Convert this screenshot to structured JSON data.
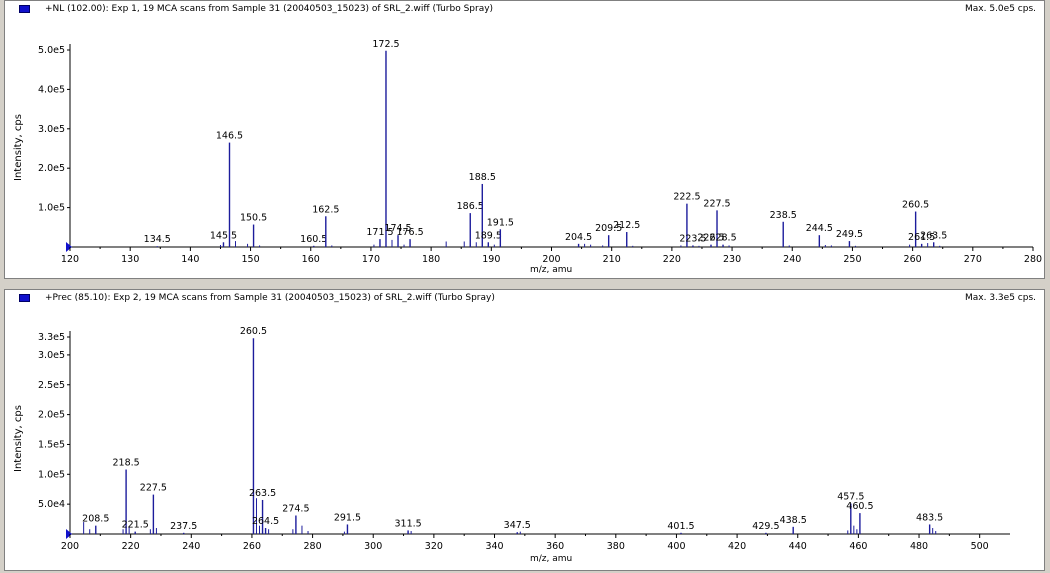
{
  "spectra": [
    {
      "title": "+NL (102.00): Exp 1, 19 MCA scans from Sample 31 (20040503_15023) of SRL_2.wiff (Turbo Spray)",
      "max_label": "Max. 5.0e5 cps.",
      "ylabel": "Intensity, cps",
      "xlabel": "m/z, amu"
    },
    {
      "title": "+Prec (85.10): Exp 2, 19 MCA scans from Sample 31 (20040503_15023) of SRL_2.wiff (Turbo Spray)",
      "max_label": "Max. 3.3e5 cps.",
      "ylabel": "Intensity, cps",
      "xlabel": "m/z, amu"
    }
  ],
  "colors": {
    "peak": "#1c1c9c",
    "axis": "#000000",
    "marker": "#1111cc"
  },
  "chart_data": [
    {
      "type": "bar",
      "title": "+NL (102.00): Exp 1, 19 MCA scans from Sample 31 (20040503_15023) of SRL_2.wiff (Turbo Spray)",
      "xlabel": "m/z, amu",
      "ylabel": "Intensity, cps",
      "xlim": [
        120,
        280
      ],
      "ylim": [
        0,
        500000
      ],
      "xticks": [
        120,
        130,
        140,
        150,
        160,
        170,
        180,
        190,
        200,
        210,
        220,
        230,
        240,
        250,
        260,
        270,
        280
      ],
      "yticks": [
        {
          "v": 100000,
          "label": "1.0e5"
        },
        {
          "v": 200000,
          "label": "2.0e5"
        },
        {
          "v": 300000,
          "label": "3.0e5"
        },
        {
          "v": 400000,
          "label": "4.0e5"
        },
        {
          "v": 500000,
          "label": "5.0e5"
        }
      ],
      "grid": false,
      "peaks": [
        {
          "x": 134.5,
          "y": 2000,
          "label": "134.5"
        },
        {
          "x": 145.5,
          "y": 12000,
          "label": "145.5"
        },
        {
          "x": 146.5,
          "y": 265000,
          "label": "146.5"
        },
        {
          "x": 150.5,
          "y": 57000,
          "label": "150.5"
        },
        {
          "x": 160.5,
          "y": 3000,
          "label": "160.5"
        },
        {
          "x": 162.5,
          "y": 78000,
          "label": "162.5"
        },
        {
          "x": 171.5,
          "y": 20000,
          "label": "171.5"
        },
        {
          "x": 172.5,
          "y": 498000,
          "label": "172.5"
        },
        {
          "x": 174.5,
          "y": 30000,
          "label": "174.5"
        },
        {
          "x": 176.5,
          "y": 20000,
          "label": "176.5"
        },
        {
          "x": 186.5,
          "y": 86000,
          "label": "186.5"
        },
        {
          "x": 188.5,
          "y": 160000,
          "label": "188.5"
        },
        {
          "x": 189.5,
          "y": 12000,
          "label": "189.5"
        },
        {
          "x": 191.5,
          "y": 45000,
          "label": "191.5"
        },
        {
          "x": 204.5,
          "y": 8000,
          "label": "204.5"
        },
        {
          "x": 209.5,
          "y": 30000,
          "label": "209.5"
        },
        {
          "x": 212.5,
          "y": 38000,
          "label": "212.5"
        },
        {
          "x": 222.5,
          "y": 110000,
          "label": "222.5"
        },
        {
          "x": 223.5,
          "y": 4000,
          "label": "223.5"
        },
        {
          "x": 226.5,
          "y": 6000,
          "label": "226.5"
        },
        {
          "x": 227.5,
          "y": 93000,
          "label": "227.5"
        },
        {
          "x": 228.5,
          "y": 6000,
          "label": "228.5"
        },
        {
          "x": 238.5,
          "y": 64000,
          "label": "238.5"
        },
        {
          "x": 244.5,
          "y": 30000,
          "label": "244.5"
        },
        {
          "x": 249.5,
          "y": 15000,
          "label": "249.5"
        },
        {
          "x": 260.5,
          "y": 90000,
          "label": "260.5"
        },
        {
          "x": 261.5,
          "y": 8000,
          "label": "261.5"
        },
        {
          "x": 263.5,
          "y": 12000,
          "label": "263.5"
        }
      ],
      "minor_peaks": [
        {
          "x": 145.0,
          "y": 5000
        },
        {
          "x": 147.5,
          "y": 15000
        },
        {
          "x": 149.5,
          "y": 8000
        },
        {
          "x": 151.5,
          "y": 4000
        },
        {
          "x": 163.5,
          "y": 4000
        },
        {
          "x": 170.5,
          "y": 6000
        },
        {
          "x": 173.5,
          "y": 18000
        },
        {
          "x": 175.5,
          "y": 6000
        },
        {
          "x": 182.5,
          "y": 14000
        },
        {
          "x": 185.5,
          "y": 14000
        },
        {
          "x": 187.5,
          "y": 12000
        },
        {
          "x": 190.5,
          "y": 6000
        },
        {
          "x": 205.5,
          "y": 8000
        },
        {
          "x": 206.5,
          "y": 6000
        },
        {
          "x": 208.5,
          "y": 4000
        },
        {
          "x": 213.5,
          "y": 3000
        },
        {
          "x": 221.5,
          "y": 4000
        },
        {
          "x": 224.5,
          "y": 3000
        },
        {
          "x": 229.5,
          "y": 4000
        },
        {
          "x": 239.5,
          "y": 4000
        },
        {
          "x": 245.5,
          "y": 5000
        },
        {
          "x": 246.5,
          "y": 4000
        },
        {
          "x": 250.5,
          "y": 3000
        },
        {
          "x": 259.5,
          "y": 6000
        },
        {
          "x": 262.5,
          "y": 10000
        },
        {
          "x": 264.5,
          "y": 3000
        }
      ]
    },
    {
      "type": "bar",
      "title": "+Prec (85.10): Exp 2, 19 MCA scans from Sample 31 (20040503_15023) of SRL_2.wiff (Turbo Spray)",
      "xlabel": "m/z, amu",
      "ylabel": "Intensity, cps",
      "xlim": [
        200,
        510
      ],
      "ylim": [
        0,
        330000
      ],
      "xticks": [
        200,
        220,
        240,
        260,
        280,
        300,
        320,
        340,
        360,
        380,
        400,
        420,
        440,
        460,
        480,
        500
      ],
      "yticks": [
        {
          "v": 50000,
          "label": "5.0e4"
        },
        {
          "v": 100000,
          "label": "1.0e5"
        },
        {
          "v": 150000,
          "label": "1.5e5"
        },
        {
          "v": 200000,
          "label": "2.0e5"
        },
        {
          "v": 250000,
          "label": "2.5e5"
        },
        {
          "v": 300000,
          "label": "3.0e5"
        },
        {
          "v": 330000,
          "label": "3.3e5"
        }
      ],
      "grid": false,
      "peaks": [
        {
          "x": 208.5,
          "y": 14000,
          "label": "208.5"
        },
        {
          "x": 218.5,
          "y": 108000,
          "label": "218.5"
        },
        {
          "x": 221.5,
          "y": 4000,
          "label": "221.5"
        },
        {
          "x": 227.5,
          "y": 66000,
          "label": "227.5"
        },
        {
          "x": 237.5,
          "y": 2000,
          "label": "237.5"
        },
        {
          "x": 260.5,
          "y": 328000,
          "label": "260.5"
        },
        {
          "x": 263.5,
          "y": 57000,
          "label": "263.5"
        },
        {
          "x": 264.5,
          "y": 10000,
          "label": "264.5"
        },
        {
          "x": 274.5,
          "y": 31000,
          "label": "274.5"
        },
        {
          "x": 291.5,
          "y": 16000,
          "label": "291.5"
        },
        {
          "x": 311.5,
          "y": 6000,
          "label": "311.5"
        },
        {
          "x": 347.5,
          "y": 3000,
          "label": "347.5"
        },
        {
          "x": 401.5,
          "y": 2000,
          "label": "401.5"
        },
        {
          "x": 429.5,
          "y": 2000,
          "label": "429.5"
        },
        {
          "x": 438.5,
          "y": 12000,
          "label": "438.5"
        },
        {
          "x": 457.5,
          "y": 51000,
          "label": "457.5"
        },
        {
          "x": 460.5,
          "y": 35000,
          "label": "460.5"
        },
        {
          "x": 483.5,
          "y": 16000,
          "label": "483.5"
        }
      ],
      "minor_peaks": [
        {
          "x": 204.5,
          "y": 20000
        },
        {
          "x": 206.5,
          "y": 8000
        },
        {
          "x": 217.5,
          "y": 8000
        },
        {
          "x": 219.5,
          "y": 12000
        },
        {
          "x": 226.5,
          "y": 8000
        },
        {
          "x": 228.5,
          "y": 10000
        },
        {
          "x": 261.5,
          "y": 60000
        },
        {
          "x": 262.5,
          "y": 14000
        },
        {
          "x": 265.5,
          "y": 8000
        },
        {
          "x": 273.5,
          "y": 8000
        },
        {
          "x": 276.5,
          "y": 14000
        },
        {
          "x": 278.5,
          "y": 5000
        },
        {
          "x": 290.5,
          "y": 4000
        },
        {
          "x": 312.5,
          "y": 5000
        },
        {
          "x": 348.5,
          "y": 4000
        },
        {
          "x": 456.5,
          "y": 6000
        },
        {
          "x": 458.5,
          "y": 14000
        },
        {
          "x": 459.5,
          "y": 8000
        },
        {
          "x": 484.5,
          "y": 10000
        },
        {
          "x": 485.5,
          "y": 5000
        }
      ]
    }
  ]
}
